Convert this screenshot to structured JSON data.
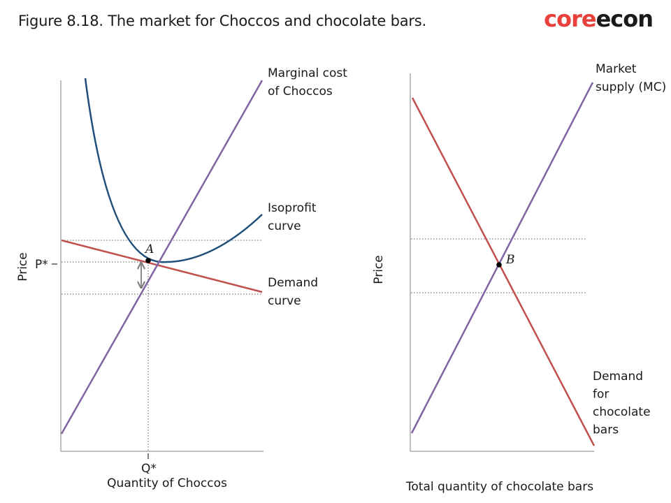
{
  "header": {
    "title": "Figure 8.18. The market for Choccos and chocolate bars.",
    "logo_part1": "core",
    "logo_part2": "econ"
  },
  "colors": {
    "mc": "#8064a2",
    "demand": "#c0504d",
    "isoprofit": "#1f4e79",
    "guide": "#555555",
    "axis": "#7f7f7f",
    "arrow": "#7f7f7f"
  },
  "chart_data": [
    {
      "type": "line",
      "title": "",
      "xlabel": "Quantity of Choccos",
      "ylabel": "Price",
      "x_ticks": [
        "Q*"
      ],
      "y_ticks": [
        "P*"
      ],
      "series": [
        {
          "name": "Marginal cost of Choccos",
          "kind": "line",
          "label_lines": [
            "Marginal cost",
            "of Choccos"
          ]
        },
        {
          "name": "Isoprofit curve",
          "kind": "curve",
          "label_lines": [
            "Isoprofit",
            "curve"
          ]
        },
        {
          "name": "Demand curve",
          "kind": "line",
          "label_lines": [
            "Demand",
            "curve"
          ]
        }
      ],
      "points": [
        {
          "label": "A",
          "on": "Demand curve",
          "at": [
            "Q*",
            "P*"
          ]
        }
      ],
      "annotations": [
        "double-headed arrow at Q* between P* and marginal cost"
      ],
      "grid": false
    },
    {
      "type": "line",
      "title": "",
      "xlabel": "Total quantity of chocolate bars",
      "ylabel": "Price",
      "series": [
        {
          "name": "Market supply (MC)",
          "kind": "line",
          "label_lines": [
            "Market",
            "supply (MC)"
          ]
        },
        {
          "name": "Demand for chocolate bars",
          "kind": "line",
          "label_lines": [
            "Demand",
            "for",
            "chocolate",
            "bars"
          ]
        }
      ],
      "points": [
        {
          "label": "B",
          "at": "intersection of supply and demand"
        }
      ],
      "grid": false
    }
  ]
}
